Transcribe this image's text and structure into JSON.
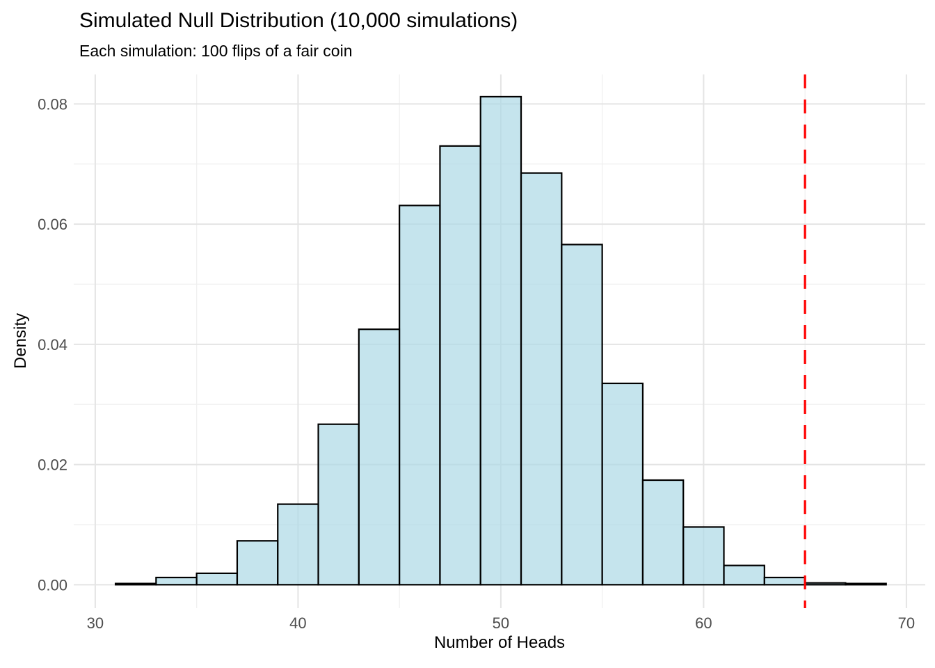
{
  "chart_data": {
    "type": "bar",
    "subtype": "histogram",
    "title": "Simulated Null Distribution (10,000 simulations)",
    "subtitle": "Each simulation: 100 flips of a fair coin",
    "xlabel": "Number of Heads",
    "ylabel": "Density",
    "n_simulations_shown_in_title": "10,000",
    "bin_width": 2,
    "bins": [
      {
        "x0": 31,
        "x1": 33,
        "density": 0.0002
      },
      {
        "x0": 33,
        "x1": 35,
        "density": 0.0012
      },
      {
        "x0": 35,
        "x1": 37,
        "density": 0.0019
      },
      {
        "x0": 37,
        "x1": 39,
        "density": 0.0073
      },
      {
        "x0": 39,
        "x1": 41,
        "density": 0.0134
      },
      {
        "x0": 41,
        "x1": 43,
        "density": 0.0267
      },
      {
        "x0": 43,
        "x1": 45,
        "density": 0.0425
      },
      {
        "x0": 45,
        "x1": 47,
        "density": 0.0631
      },
      {
        "x0": 47,
        "x1": 49,
        "density": 0.073
      },
      {
        "x0": 49,
        "x1": 51,
        "density": 0.0812
      },
      {
        "x0": 51,
        "x1": 53,
        "density": 0.0685
      },
      {
        "x0": 53,
        "x1": 55,
        "density": 0.0566
      },
      {
        "x0": 55,
        "x1": 57,
        "density": 0.0335
      },
      {
        "x0": 57,
        "x1": 59,
        "density": 0.0174
      },
      {
        "x0": 59,
        "x1": 61,
        "density": 0.0096
      },
      {
        "x0": 61,
        "x1": 63,
        "density": 0.0032
      },
      {
        "x0": 63,
        "x1": 65,
        "density": 0.0012
      },
      {
        "x0": 65,
        "x1": 67,
        "density": 0.0003
      },
      {
        "x0": 67,
        "x1": 69,
        "density": 0.0002
      }
    ],
    "observed_line": {
      "x": 65,
      "style": "dashed",
      "color": "#FF0000"
    },
    "x_ticks": [
      {
        "value": 30,
        "label": "30"
      },
      {
        "value": 40,
        "label": "40"
      },
      {
        "value": 50,
        "label": "50"
      },
      {
        "value": 60,
        "label": "60"
      },
      {
        "value": 70,
        "label": "70"
      }
    ],
    "y_ticks": [
      {
        "value": 0.0,
        "label": "0.00"
      },
      {
        "value": 0.02,
        "label": "0.02"
      },
      {
        "value": 0.04,
        "label": "0.04"
      },
      {
        "value": 0.06,
        "label": "0.06"
      },
      {
        "value": 0.08,
        "label": "0.08"
      }
    ],
    "x_minor_ticks": [
      35,
      45,
      55,
      65
    ],
    "y_minor_ticks": [
      0.01,
      0.03,
      0.05,
      0.07
    ],
    "xlim": [
      28.94,
      70.93
    ],
    "ylim": [
      -0.0039,
      0.0849
    ],
    "grid": "major-and-minor, no axis lines, no tick marks",
    "legend": "none",
    "colors": {
      "background": "#FFFFFF",
      "bar_fill": "#ADD8E6",
      "bar_fill_opacity": 0.7,
      "bar_stroke": "#000000",
      "grid_major": "#E4E4E4",
      "grid_minor": "#F0F0F0",
      "tick_text": "#4D4D4D",
      "title_text": "#000000",
      "observed_line": "#FF0000"
    }
  }
}
